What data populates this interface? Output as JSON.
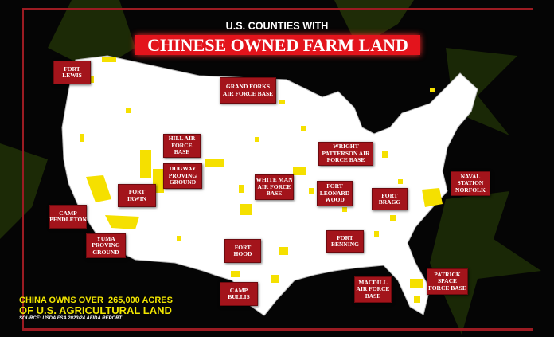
{
  "header": {
    "subtitle": "U.S. COUNTIES WITH",
    "title": "CHINESE OWNED FARM LAND"
  },
  "bases": [
    "FORT LEWIS",
    "GRAND FORKS AIR FORCE BASE",
    "HILL AIR FORCE BASE",
    "DUGWAY PROVING GROUND",
    "FORT IRWIN",
    "CAMP PENDLETON",
    "YUMA PROVING GROUND",
    "WHITE MAN AIR FORCE BASE",
    "FORT LEONARD WOOD",
    "WRIGHT PATTERSON AIR FORCE BASE",
    "FORT BRAGG",
    "NAVAL STATION NORFOLK",
    "FORT BENNING",
    "FORT HOOD",
    "CAMP BULLIS",
    "MACDILL AIR FORCE BASE",
    "PATRICK SPACE FORCE BASE"
  ],
  "footer": {
    "line1": "CHINA OWNS OVER  265,000 ACRES",
    "line2": "OF U.S. AGRICULTURAL LAND",
    "source": "SOURCE: USDA FSA 2023/24 AFIDA REPORT"
  },
  "colors": {
    "background": "#000000",
    "flag_star": "#2a3a08",
    "map": "#ffffff",
    "county_highlight": "#f5e000",
    "label": "#a3141b",
    "title_bg": "#e3141c"
  }
}
